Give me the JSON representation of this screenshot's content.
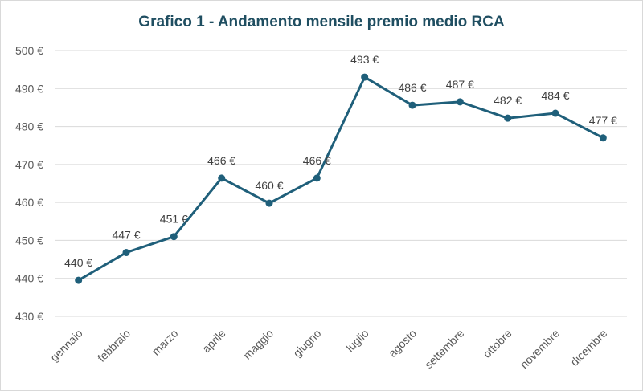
{
  "chart_data": {
    "type": "line",
    "title": "Grafico 1 - Andamento mensile premio medio RCA",
    "categories": [
      "gennaio",
      "febbraio",
      "marzo",
      "aprile",
      "maggio",
      "giugno",
      "luglio",
      "agosto",
      "settembre",
      "ottobre",
      "novembre",
      "dicembre"
    ],
    "values": [
      439.5,
      446.8,
      451.0,
      466.4,
      459.8,
      466.4,
      493.0,
      485.6,
      486.5,
      482.2,
      483.5,
      477.0
    ],
    "data_labels": [
      "440 €",
      "447 €",
      "451 €",
      "466 €",
      "460 €",
      "466 €",
      "493 €",
      "486 €",
      "487 €",
      "482 €",
      "484 €",
      "477 €"
    ],
    "yticks": [
      "430 €",
      "440 €",
      "450 €",
      "460 €",
      "470 €",
      "480 €",
      "490 €",
      "500 €"
    ],
    "ylim": [
      430,
      500
    ],
    "xlabel": "",
    "ylabel": "",
    "grid": true,
    "legend": "none",
    "line_color": "#1f5f7a"
  }
}
